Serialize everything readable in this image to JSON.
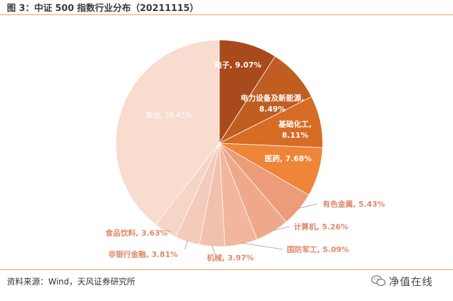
{
  "header": {
    "title": "图 3：中证 500 指数行业分布（20211115）"
  },
  "footer": {
    "source": "资料来源：Wind，天风证券研究所",
    "watermark": "净值在线"
  },
  "chart_data": {
    "type": "pie",
    "title": "",
    "slices": [
      {
        "name": "电子",
        "value": 9.07,
        "label": "电子, 9.07%",
        "color": "#a84a1c"
      },
      {
        "name": "电力设备及新能源",
        "value": 8.49,
        "label": "电力设备及新能源, 8.49%",
        "color": "#c05d20"
      },
      {
        "name": "基础化工",
        "value": 8.11,
        "label": "基础化工, 8.11%",
        "color": "#d66c25"
      },
      {
        "name": "医药",
        "value": 7.68,
        "label": "医药, 7.68%",
        "color": "#ee8537"
      },
      {
        "name": "有色金属",
        "value": 5.43,
        "label": "有色金属, 5.43%",
        "color": "#ec9c78"
      },
      {
        "name": "计算机",
        "value": 5.26,
        "label": "计算机, 5.26%",
        "color": "#efa98a"
      },
      {
        "name": "国防军工",
        "value": 5.09,
        "label": "国防军工, 5.09%",
        "color": "#f1b69d"
      },
      {
        "name": "机械",
        "value": 3.97,
        "label": "机械, 3.97%",
        "color": "#f2c1ad"
      },
      {
        "name": "非银行金融",
        "value": 3.81,
        "label": "非银行金融, 3.81%",
        "color": "#f4cbba"
      },
      {
        "name": "食品饮料",
        "value": 3.63,
        "label": "食品饮料, 3.63%",
        "color": "#f6d4c6"
      },
      {
        "name": "其他",
        "value": 39.45,
        "label": "其他, 39.45%",
        "color": "#f8dcd0"
      }
    ]
  }
}
